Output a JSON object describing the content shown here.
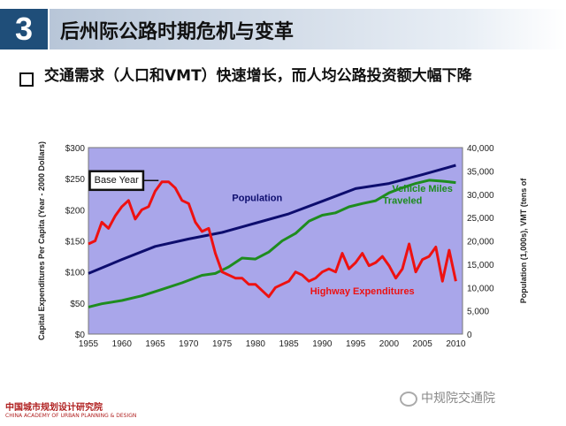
{
  "header": {
    "number": "3",
    "title": "后州际公路时期危机与变革"
  },
  "subtitle": "交通需求（人口和VMT）快速增长，而人均公路投资额大幅下降",
  "footer": {
    "org_cn": "中国城市规划设计研究院",
    "org_en": "CHINA ACADEMY OF URBAN PLANNING & DESIGN",
    "wechat": "中规院交通院"
  },
  "colors": {
    "plot_bg": "#a9a6ea",
    "population": "#0d0d6e",
    "vmt": "#1e8c1e",
    "highway": "#ee1111",
    "header_box": "#1f4e79"
  },
  "chart_data": {
    "type": "line",
    "ylabel": "Capital Expenditures Per Capita (Year - 2000 Dollars)",
    "y2label": "Population (1,000s), VMT (tens of",
    "x_ticks": [
      1955,
      1960,
      1965,
      1970,
      1975,
      1980,
      1985,
      1990,
      1995,
      2000,
      2005,
      2010
    ],
    "y_ticks": [
      "$0",
      "$50",
      "$100",
      "$150",
      "$200",
      "$250",
      "$300"
    ],
    "y2_ticks": [
      "0",
      "5,000",
      "10,000",
      "15,000",
      "20,000",
      "25,000",
      "30,000",
      "35,000",
      "40,000"
    ],
    "xlim": [
      1955,
      2011
    ],
    "ylim": [
      0,
      300
    ],
    "y2lim": [
      0,
      40000
    ],
    "annotation": "Base Year",
    "series": [
      {
        "name": "Population",
        "label": "Population",
        "axis": "right",
        "x": [
          1955,
          1960,
          1965,
          1970,
          1975,
          1980,
          1985,
          1990,
          1995,
          2000,
          2005,
          2010
        ],
        "values": [
          13000,
          16000,
          18800,
          20400,
          21800,
          23800,
          25800,
          28500,
          31200,
          32300,
          34200,
          36200
        ]
      },
      {
        "name": "Vehicle Miles Traveled",
        "label": "Vehicle Miles\nTraveled",
        "axis": "right",
        "x": [
          1955,
          1957,
          1960,
          1963,
          1966,
          1969,
          1972,
          1974,
          1976,
          1978,
          1980,
          1982,
          1984,
          1986,
          1988,
          1990,
          1992,
          1994,
          1996,
          1998,
          2000,
          2002,
          2004,
          2006,
          2008,
          2010
        ],
        "values": [
          5800,
          6500,
          7200,
          8200,
          9600,
          11000,
          12600,
          13000,
          14400,
          16300,
          16100,
          17600,
          20000,
          21600,
          24200,
          25500,
          26000,
          27300,
          28000,
          28600,
          30300,
          31400,
          32300,
          33000,
          32800,
          32500
        ]
      },
      {
        "name": "Highway Expenditures",
        "label": "Highway Expenditures",
        "axis": "left",
        "x": [
          1955,
          1956,
          1957,
          1958,
          1959,
          1960,
          1961,
          1962,
          1963,
          1964,
          1965,
          1966,
          1967,
          1968,
          1969,
          1970,
          1971,
          1972,
          1973,
          1974,
          1975,
          1976,
          1977,
          1978,
          1979,
          1980,
          1981,
          1982,
          1983,
          1984,
          1985,
          1986,
          1987,
          1988,
          1989,
          1990,
          1991,
          1992,
          1993,
          1994,
          1995,
          1996,
          1997,
          1998,
          1999,
          2000,
          2001,
          2002,
          2003,
          2004,
          2005,
          2006,
          2007,
          2008,
          2009,
          2010
        ],
        "values": [
          145,
          150,
          180,
          170,
          190,
          205,
          215,
          185,
          200,
          205,
          230,
          245,
          245,
          235,
          215,
          210,
          180,
          165,
          170,
          130,
          100,
          95,
          90,
          90,
          80,
          80,
          70,
          60,
          75,
          80,
          85,
          100,
          95,
          85,
          90,
          100,
          105,
          100,
          130,
          105,
          115,
          130,
          110,
          115,
          125,
          110,
          90,
          105,
          145,
          100,
          120,
          125,
          140,
          85,
          135,
          85
        ]
      }
    ]
  }
}
